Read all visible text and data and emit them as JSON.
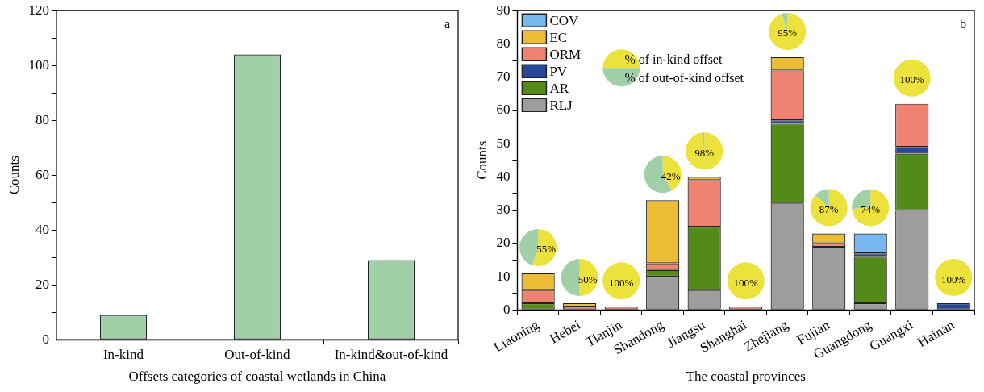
{
  "chart_data": [
    {
      "type": "bar",
      "xlabel": "Offsets categories of coastal wetlands in China",
      "ylabel": "Counts",
      "categories": [
        "In-kind",
        "Out-of-kind",
        "In-kind&out-of-kind"
      ],
      "values": [
        9,
        104,
        29
      ],
      "color": "#a1d0a8",
      "ylim": [
        0,
        120
      ],
      "yticks": [
        0,
        {
          "value": 10,
          "label": null
        },
        20,
        {
          "value": 30,
          "label": null
        },
        40,
        {
          "value": 50,
          "label": null
        },
        60,
        {
          "value": 70,
          "label": null
        },
        80,
        {
          "value": 90,
          "label": null
        },
        100,
        {
          "value": 110,
          "label": null
        },
        120
      ],
      "annotations": [
        "a"
      ]
    },
    {
      "type": "bar",
      "xlabel": "The coastal provinces",
      "ylabel": "Counts",
      "stacked": true,
      "legend": "top left",
      "categories": [
        "Liaoning",
        "Hebei",
        "Tianjin",
        "Shandong",
        "Jiangsu",
        "Shanghai",
        "Zhejiang",
        "Fujian",
        "Guangdong",
        "Guangxi",
        "Hainan"
      ],
      "series": [
        {
          "name": "RLJ",
          "color": "#9e9c9d",
          "values": [
            null,
            null,
            null,
            10,
            6,
            null,
            32,
            19,
            2,
            30,
            null
          ]
        },
        {
          "name": "AR",
          "color": "#528b17",
          "values": [
            2,
            null,
            null,
            2,
            19,
            null,
            24,
            null,
            14,
            17,
            null
          ]
        },
        {
          "name": "PV",
          "color": "#27479a",
          "values": [
            null,
            null,
            null,
            null,
            null,
            null,
            1,
            null,
            1,
            2,
            2
          ]
        },
        {
          "name": "ORM",
          "color": "#f08272",
          "values": [
            4,
            1,
            1,
            2,
            14,
            1,
            15,
            1,
            null,
            13,
            null
          ]
        },
        {
          "name": "EC",
          "color": "#ecbc36",
          "values": [
            5,
            1,
            null,
            19,
            1,
            null,
            4,
            3,
            null,
            null,
            null
          ]
        },
        {
          "name": "COV",
          "color": "#77b6f0",
          "values": [
            null,
            null,
            null,
            null,
            null,
            null,
            null,
            null,
            6,
            null,
            null
          ]
        }
      ],
      "ylim": [
        0,
        90
      ],
      "yticks": [
        0,
        {
          "value": 5,
          "label": null
        },
        10,
        {
          "value": 15,
          "label": null
        },
        20,
        {
          "value": 25,
          "label": null
        },
        30,
        {
          "value": 35,
          "label": null
        },
        40,
        {
          "value": 45,
          "label": null
        },
        50,
        {
          "value": 55,
          "label": null
        },
        60,
        {
          "value": 65,
          "label": null
        },
        70,
        {
          "value": 75,
          "label": null
        },
        80,
        {
          "value": 85,
          "label": null
        },
        90
      ],
      "annotations": [
        "b",
        "% of in-kind offset",
        "% of out-of-kind offset",
        "55%",
        "50%",
        "100%",
        "42%",
        "98%",
        "100%",
        "95%",
        "87%",
        "74%",
        "100%",
        "100%"
      ]
    }
  ]
}
